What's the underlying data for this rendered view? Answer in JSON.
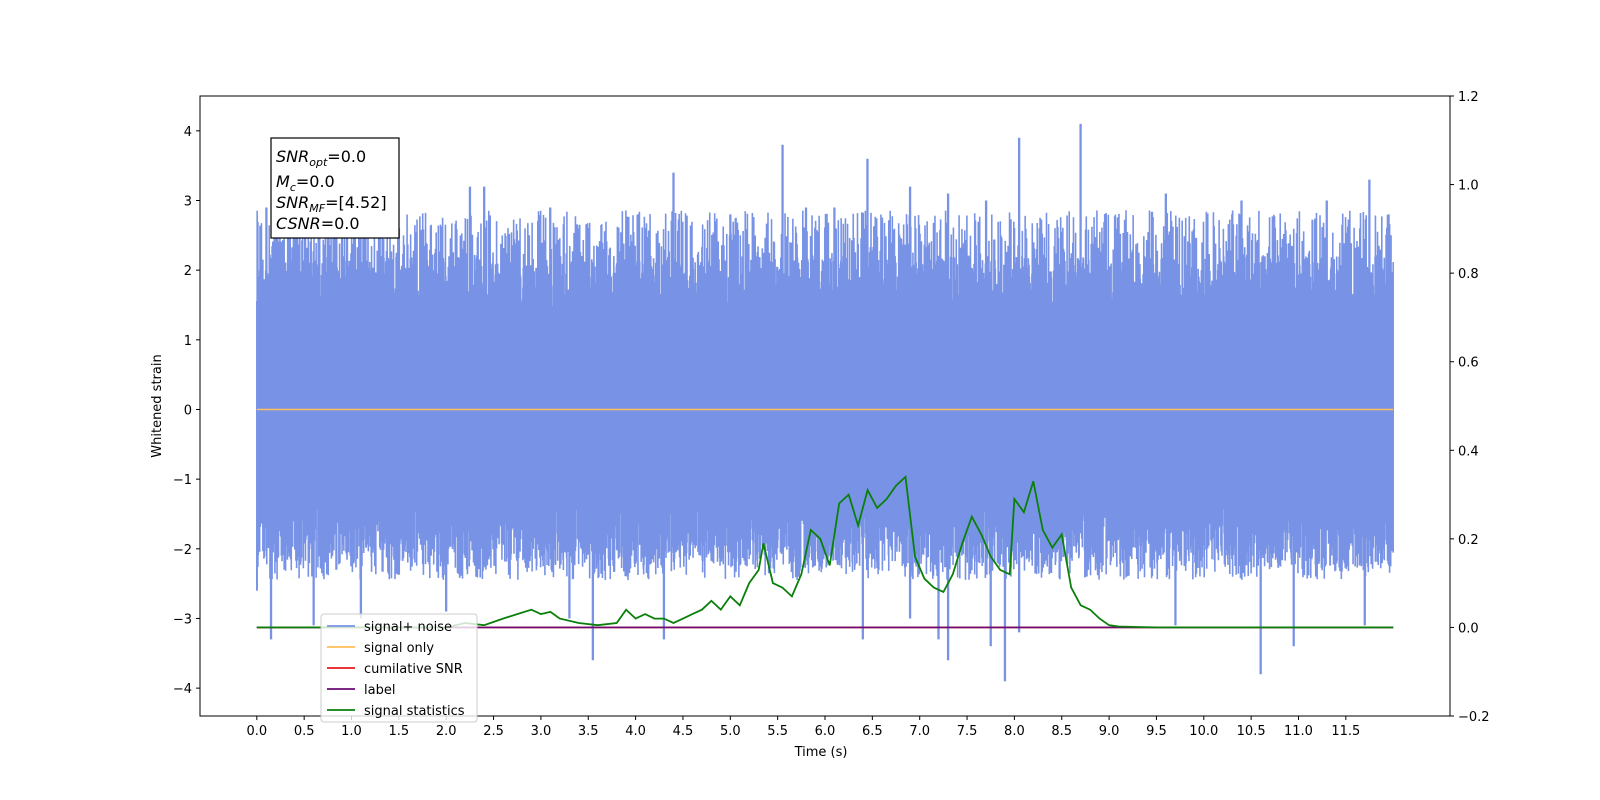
{
  "chart_data": {
    "type": "line",
    "title": "",
    "xlabel": "Time (s)",
    "ylabel": "Whitened strain",
    "xlim": [
      -0.6,
      12.6
    ],
    "ylim": [
      -4.4,
      4.5
    ],
    "y2lim": [
      -0.2,
      1.2
    ],
    "x_ticks": [
      "0.0",
      "0.5",
      "1.0",
      "1.5",
      "2.0",
      "2.5",
      "3.0",
      "3.5",
      "4.0",
      "4.5",
      "5.0",
      "5.5",
      "6.0",
      "6.5",
      "7.0",
      "7.5",
      "8.0",
      "8.5",
      "9.0",
      "9.5",
      "10.0",
      "10.5",
      "11.0",
      "11.5"
    ],
    "y_ticks": [
      "4",
      "3",
      "2",
      "1",
      "0",
      "−1",
      "−2",
      "−3",
      "−4"
    ],
    "y2_ticks": [
      "1.2",
      "1.0",
      "0.8",
      "0.6",
      "0.4",
      "0.2",
      "0.0",
      "−0.2"
    ],
    "grid": false,
    "legend_position": "lower-left",
    "annotation": {
      "snr_opt": {
        "base": "SNR",
        "sub": "opt",
        "value": "=0.0"
      },
      "mc": {
        "base": "M",
        "sub": "c",
        "value": "=0.0"
      },
      "snr_mf": {
        "base": "SNR",
        "sub": "MF",
        "value": "=[4.52]"
      },
      "csnr": {
        "base": "CSNR",
        "value": "=0.0"
      }
    },
    "series": [
      {
        "name": "signal+ noise",
        "color": "#7893e6",
        "axis": "left",
        "style": "dense noise band",
        "x_range": [
          0.0,
          12.0
        ],
        "band_typical": [
          -1.9,
          2.6
        ],
        "spikes_up": [
          [
            0.1,
            2.9
          ],
          [
            0.35,
            2.6
          ],
          [
            0.9,
            2.6
          ],
          [
            1.5,
            2.6
          ],
          [
            2.25,
            3.2
          ],
          [
            2.4,
            3.2
          ],
          [
            3.1,
            2.9
          ],
          [
            4.4,
            3.4
          ],
          [
            5.0,
            2.8
          ],
          [
            5.55,
            3.8
          ],
          [
            5.8,
            2.9
          ],
          [
            6.1,
            2.9
          ],
          [
            6.45,
            3.6
          ],
          [
            6.9,
            3.2
          ],
          [
            7.3,
            3.1
          ],
          [
            7.7,
            3.0
          ],
          [
            8.05,
            3.9
          ],
          [
            8.7,
            4.1
          ],
          [
            9.6,
            3.1
          ],
          [
            10.4,
            3.0
          ],
          [
            11.3,
            3.0
          ],
          [
            11.75,
            3.3
          ],
          [
            11.95,
            2.8
          ]
        ],
        "spikes_down": [
          [
            0.0,
            -2.6
          ],
          [
            0.15,
            -3.3
          ],
          [
            0.6,
            -3.1
          ],
          [
            1.1,
            -3.0
          ],
          [
            2.0,
            -2.9
          ],
          [
            3.3,
            -3.0
          ],
          [
            3.55,
            -3.6
          ],
          [
            4.3,
            -3.3
          ],
          [
            6.4,
            -3.3
          ],
          [
            6.9,
            -3.0
          ],
          [
            7.2,
            -3.3
          ],
          [
            7.3,
            -3.6
          ],
          [
            7.75,
            -3.4
          ],
          [
            7.9,
            -3.9
          ],
          [
            8.05,
            -3.2
          ],
          [
            9.7,
            -3.1
          ],
          [
            10.6,
            -3.8
          ],
          [
            10.95,
            -3.4
          ],
          [
            11.7,
            -3.1
          ]
        ]
      },
      {
        "name": "signal only",
        "color": "#ffbe5a",
        "axis": "left",
        "x": [
          0.0,
          12.0
        ],
        "y": [
          0.0,
          0.0
        ]
      },
      {
        "name": "cumilative SNR",
        "color": "#e41a1c",
        "axis": "right",
        "x": [
          0.0,
          12.0
        ],
        "y": [
          0.0,
          0.0
        ]
      },
      {
        "name": "label",
        "color": "#6a0a72",
        "axis": "right",
        "x": [
          0.0,
          12.0
        ],
        "y": [
          0.0,
          0.0
        ]
      },
      {
        "name": "signal statistics",
        "color": "#0a800a",
        "axis": "right",
        "x": [
          0.0,
          2.0,
          2.2,
          2.4,
          2.6,
          2.75,
          2.9,
          3.0,
          3.1,
          3.2,
          3.4,
          3.6,
          3.8,
          3.9,
          4.0,
          4.1,
          4.2,
          4.3,
          4.4,
          4.5,
          4.6,
          4.7,
          4.8,
          4.9,
          5.0,
          5.1,
          5.2,
          5.3,
          5.35,
          5.45,
          5.55,
          5.65,
          5.75,
          5.85,
          5.95,
          6.05,
          6.15,
          6.25,
          6.35,
          6.45,
          6.55,
          6.65,
          6.75,
          6.85,
          6.95,
          7.05,
          7.15,
          7.25,
          7.35,
          7.45,
          7.55,
          7.65,
          7.75,
          7.85,
          7.95,
          8.0,
          8.1,
          8.2,
          8.3,
          8.4,
          8.5,
          8.6,
          8.7,
          8.8,
          8.9,
          9.0,
          9.1,
          9.3,
          9.5,
          12.0
        ],
        "y": [
          0.0,
          0.0,
          0.01,
          0.005,
          0.02,
          0.03,
          0.04,
          0.03,
          0.035,
          0.02,
          0.01,
          0.005,
          0.01,
          0.04,
          0.02,
          0.03,
          0.02,
          0.02,
          0.01,
          0.02,
          0.03,
          0.04,
          0.06,
          0.04,
          0.07,
          0.05,
          0.1,
          0.13,
          0.19,
          0.1,
          0.09,
          0.07,
          0.12,
          0.22,
          0.2,
          0.14,
          0.28,
          0.3,
          0.23,
          0.31,
          0.27,
          0.29,
          0.32,
          0.34,
          0.16,
          0.11,
          0.09,
          0.08,
          0.12,
          0.19,
          0.25,
          0.21,
          0.16,
          0.13,
          0.12,
          0.29,
          0.26,
          0.33,
          0.22,
          0.18,
          0.21,
          0.09,
          0.05,
          0.04,
          0.02,
          0.005,
          0.002,
          0.001,
          0.0,
          0.0
        ]
      }
    ]
  }
}
